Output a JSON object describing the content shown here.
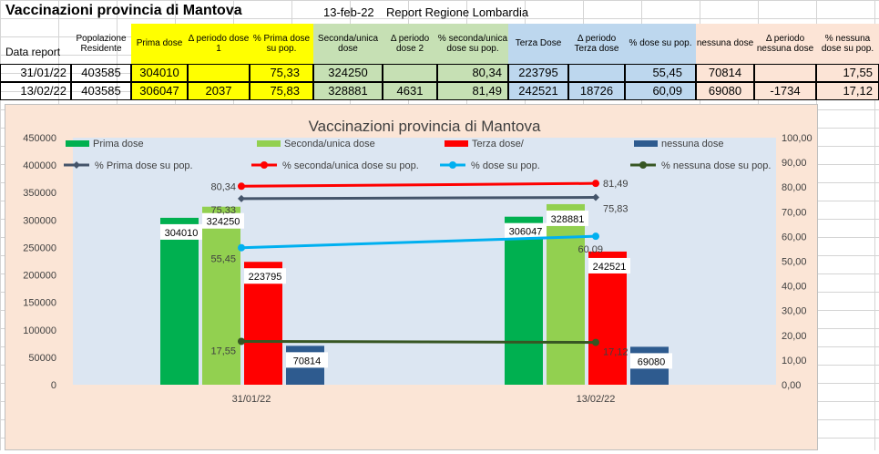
{
  "sheet": {
    "title": "Vaccinazioni provincia di Mantova",
    "date": "13-feb-22",
    "report": "Report Regione Lombardia",
    "headers": {
      "data_report": "Data report",
      "popolazione": "Popolazione Residente",
      "prima_dose": "Prima dose",
      "delta1": "Δ periodo dose 1",
      "pct_prima": "% Prima dose su pop.",
      "seconda": "Seconda/unica dose",
      "delta2": "Δ periodo dose 2",
      "pct_seconda": "% seconda/unica dose su pop.",
      "terza": "Terza Dose",
      "delta3": "Δ periodo Terza dose",
      "pct_dose": "% dose su pop.",
      "nessuna": "nessuna dose",
      "delta_nessuna": "Δ periodo nessuna dose",
      "pct_nessuna": "% nessuna dose su pop."
    },
    "rows": [
      {
        "data": "31/01/22",
        "pop": "403585",
        "prima": "304010",
        "d1": "",
        "pct_prima": "75,33",
        "seconda": "324250",
        "d2": "",
        "pct_seconda": "80,34",
        "terza": "223795",
        "d3": "",
        "pct_dose": "55,45",
        "nessuna": "70814",
        "dn": "",
        "pct_nessuna": "17,55"
      },
      {
        "data": "13/02/22",
        "pop": "403585",
        "prima": "306047",
        "d1": "2037",
        "pct_prima": "75,83",
        "seconda": "328881",
        "d2": "4631",
        "pct_seconda": "81,49",
        "terza": "242521",
        "d3": "18726",
        "pct_dose": "60,09",
        "nessuna": "69080",
        "dn": "-1734",
        "pct_nessuna": "17,12"
      }
    ]
  },
  "chart_data": {
    "type": "bar",
    "title": "Vaccinazioni provincia di Mantova",
    "categories": [
      "31/01/22",
      "13/02/22"
    ],
    "series": [
      {
        "name": "Prima dose",
        "values": [
          304010,
          306047
        ],
        "color": "#00b050"
      },
      {
        "name": "Seconda/unica dose",
        "values": [
          324250,
          328881
        ],
        "color": "#92d050"
      },
      {
        "name": "Terza dose/",
        "values": [
          223795,
          242521
        ],
        "color": "#ff0000"
      },
      {
        "name": "nessuna dose",
        "values": [
          70814,
          69080
        ],
        "color": "#2e5b8f"
      }
    ],
    "line_series": [
      {
        "name": "% Prima dose su pop.",
        "values": [
          75.33,
          75.83
        ],
        "labels": [
          "75,33",
          "75,83"
        ],
        "color": "#44546a"
      },
      {
        "name": "% seconda/unica  dose su pop.",
        "values": [
          80.34,
          81.49
        ],
        "labels": [
          "80,34",
          "81,49"
        ],
        "color": "#ff0000"
      },
      {
        "name": "% dose        su pop.",
        "values": [
          55.45,
          60.09
        ],
        "labels": [
          "55,45",
          "60,09"
        ],
        "color": "#00b0f0"
      },
      {
        "name": "%  nessuna dose su pop.",
        "values": [
          17.55,
          17.12
        ],
        "labels": [
          "17,55",
          "17,12"
        ],
        "color": "#375623"
      }
    ],
    "bar_labels": [
      [
        "304010",
        "306047"
      ],
      [
        "324250",
        "328881"
      ],
      [
        "223795",
        "242521"
      ],
      [
        "70814",
        "69080"
      ]
    ],
    "y_left": {
      "min": 0,
      "max": 450000,
      "step": 50000,
      "ticks": [
        "0",
        "50000",
        "100000",
        "150000",
        "200000",
        "250000",
        "300000",
        "350000",
        "400000",
        "450000"
      ]
    },
    "y_right": {
      "min": 0,
      "max": 100,
      "step": 10,
      "ticks": [
        "0,00",
        "10,00",
        "20,00",
        "30,00",
        "40,00",
        "50,00",
        "60,00",
        "70,00",
        "80,00",
        "90,00",
        "100,00"
      ]
    },
    "legend_position": "top",
    "grid": false
  }
}
